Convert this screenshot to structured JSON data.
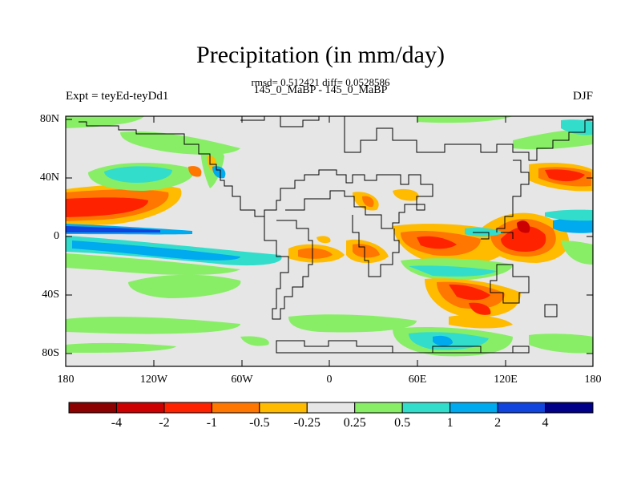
{
  "header": {
    "title": "Precipitation (in mm/day)",
    "stats": "rmsd= 0.512421 diff= 0.0528586",
    "experiment_names": "145_0_MaBP - 145_0_MaBP",
    "expt": "Expt = teyEd-teyDd1",
    "season": "DJF"
  },
  "map": {
    "lat_labels": [
      "80N",
      "40N",
      "0",
      "40S",
      "80S"
    ],
    "lon_labels": [
      "180",
      "120W",
      "60W",
      "0",
      "60E",
      "120E",
      "180"
    ]
  },
  "colorbar": {
    "colors": [
      "#8b0000",
      "#cc0000",
      "#ff2200",
      "#ff7700",
      "#ffbb00",
      "#e6e6e6",
      "#88ee66",
      "#33ddcc",
      "#00aaee",
      "#1144dd",
      "#000088"
    ],
    "labels": [
      "-4",
      "-2",
      "-1",
      "-0.5",
      "-0.25",
      "0.25",
      "0.5",
      "1",
      "2",
      "4"
    ]
  }
}
